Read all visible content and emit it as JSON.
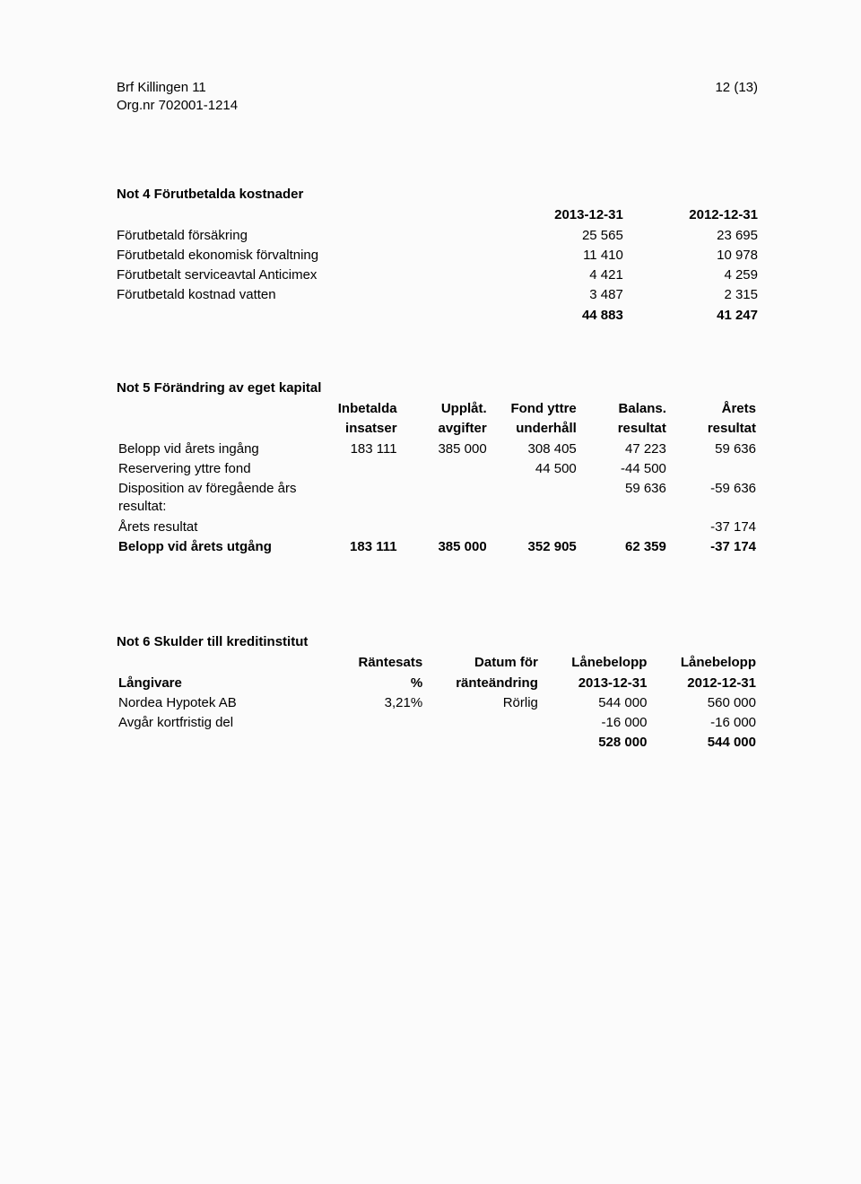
{
  "header": {
    "company": "Brf Killingen 11",
    "orgnr": "Org.nr 702001-1214",
    "page": "12 (13)"
  },
  "not4": {
    "title": "Not 4 Förutbetalda kostnader",
    "col1": "2013-12-31",
    "col2": "2012-12-31",
    "rows": [
      {
        "label": "Förutbetald försäkring",
        "v1": "25 565",
        "v2": "23 695"
      },
      {
        "label": "Förutbetald ekonomisk förvaltning",
        "v1": "11 410",
        "v2": "10 978"
      },
      {
        "label": "Förutbetalt serviceavtal Anticimex",
        "v1": "4 421",
        "v2": "4 259"
      },
      {
        "label": "Förutbetald kostnad vatten",
        "v1": "3 487",
        "v2": "2 315"
      }
    ],
    "total": {
      "v1": "44 883",
      "v2": "41 247"
    }
  },
  "not5": {
    "title": "Not 5 Förändring av eget kapital",
    "head": {
      "c1a": "Inbetalda",
      "c1b": "insatser",
      "c2a": "Upplåt.",
      "c2b": "avgifter",
      "c3a": "Fond yttre",
      "c3b": "underhåll",
      "c4a": "Balans.",
      "c4b": "resultat",
      "c5a": "Årets",
      "c5b": "resultat"
    },
    "rows": [
      {
        "label": "Belopp vid årets ingång",
        "c1": "183 111",
        "c2": "385 000",
        "c3": "308 405",
        "c4": "47 223",
        "c5": "59 636"
      },
      {
        "label": "Reservering yttre fond",
        "c1": "",
        "c2": "",
        "c3": "44 500",
        "c4": "-44 500",
        "c5": ""
      },
      {
        "label": "Disposition av föregående års resultat:",
        "c1": "",
        "c2": "",
        "c3": "",
        "c4": "59 636",
        "c5": "-59 636"
      },
      {
        "label": "Årets resultat",
        "c1": "",
        "c2": "",
        "c3": "",
        "c4": "",
        "c5": "-37 174"
      }
    ],
    "totalLabel": "Belopp vid årets utgång",
    "total": {
      "c1": "183 111",
      "c2": "385 000",
      "c3": "352 905",
      "c4": "62 359",
      "c5": "-37 174"
    }
  },
  "not6": {
    "title": "Not 6 Skulder till kreditinstitut",
    "head": {
      "lender": "Långivare",
      "c1a": "Räntesats",
      "c1b": "%",
      "c2a": "Datum för",
      "c2b": "ränteändring",
      "c3a": "Lånebelopp",
      "c3b": "2013-12-31",
      "c4a": "Lånebelopp",
      "c4b": "2012-12-31"
    },
    "rows": [
      {
        "label": "Nordea Hypotek AB",
        "c1": "3,21%",
        "c2": "Rörlig",
        "c3": "544 000",
        "c4": "560 000"
      },
      {
        "label": "Avgår kortfristig del",
        "c1": "",
        "c2": "",
        "c3": "-16 000",
        "c4": "-16 000"
      }
    ],
    "total": {
      "c3": "528 000",
      "c4": "544 000"
    }
  }
}
